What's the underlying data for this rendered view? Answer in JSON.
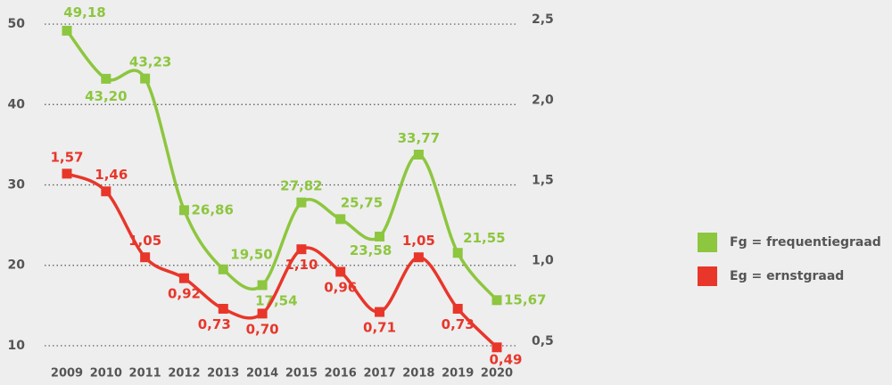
{
  "chart_data": {
    "type": "line",
    "categories": [
      "2009",
      "2010",
      "2011",
      "2012",
      "2013",
      "2014",
      "2015",
      "2016",
      "2017",
      "2018",
      "2019",
      "2020"
    ],
    "series": [
      {
        "name": "Fg = frequentiegraad",
        "color": "#8dc63f",
        "values": [
          49.18,
          43.2,
          43.23,
          26.86,
          19.5,
          17.54,
          27.82,
          25.75,
          23.58,
          33.77,
          21.55,
          15.67
        ],
        "value_labels": [
          "49,18",
          "43,20",
          "43,23",
          "26,86",
          "19,50",
          "17,54",
          "27,82",
          "25,75",
          "23,58",
          "33,77",
          "21,55",
          "15,67"
        ]
      },
      {
        "name": "Eg = ernstgraad",
        "color": "#e8362a",
        "axis": "y2",
        "values": [
          1.57,
          1.46,
          1.05,
          0.92,
          0.73,
          0.7,
          1.1,
          0.96,
          0.71,
          1.05,
          0.73,
          0.49
        ],
        "value_labels": [
          "1,57",
          "1,46",
          "1,05",
          "0,92",
          "0,73",
          "0,70",
          "1,10",
          "0,96",
          "0,71",
          "1,05",
          "0,73",
          "0,49"
        ]
      }
    ],
    "ylim": [
      8,
      52
    ],
    "yticks": [
      10,
      20,
      30,
      40,
      50
    ],
    "y2lim": [
      0.4,
      2.6
    ],
    "y2ticks": [
      {
        "value": 0.5,
        "label": "0,5"
      },
      {
        "value": 1.0,
        "label": "1,0"
      },
      {
        "value": 1.5,
        "label": "1,5"
      },
      {
        "value": 2.0,
        "label": "2,0"
      },
      {
        "value": 2.5,
        "label": "2,5"
      }
    ],
    "grid": true,
    "legend": "right"
  }
}
